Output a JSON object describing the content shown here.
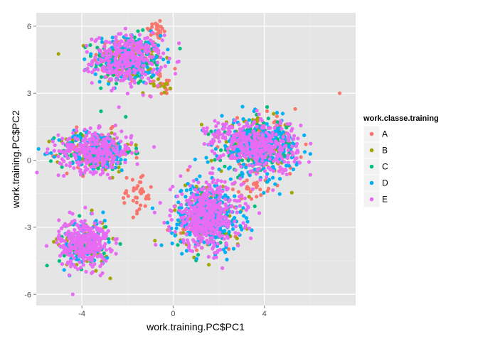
{
  "chart_data": {
    "type": "scatter",
    "xlabel": "work.training.PC$PC1",
    "ylabel": "work.training.PC$PC2",
    "xlim": [
      -6,
      8
    ],
    "ylim": [
      -6.5,
      6.6
    ],
    "x_ticks": [
      -4,
      0,
      4
    ],
    "y_ticks": [
      -6,
      -3,
      0,
      3,
      6
    ],
    "grid": true,
    "legend": {
      "title": "work.classe.training",
      "placement": "right",
      "entries": [
        "A",
        "B",
        "C",
        "D",
        "E"
      ]
    },
    "colors": {
      "A": "#F8766D",
      "B": "#A3A500",
      "C": "#00BF7D",
      "D": "#00B0F6",
      "E": "#E76BF3"
    },
    "clusters": [
      {
        "center": [
          -2,
          4.5
        ],
        "spread": [
          0.75,
          0.55
        ],
        "counts": {
          "A": 70,
          "B": 70,
          "C": 110,
          "D": 130,
          "E": 320
        },
        "extra": [
          {
            "class": "A",
            "center": [
              -0.8,
              5.8
            ],
            "spread": [
              0.3,
              0.2
            ],
            "n": 25
          },
          {
            "class": "A",
            "center": [
              -0.4,
              3.4
            ],
            "spread": [
              0.35,
              0.25
            ],
            "n": 20
          },
          {
            "class": "B",
            "center": [
              -0.7,
              3.4
            ],
            "spread": [
              0.3,
              0.2
            ],
            "n": 15
          }
        ]
      },
      {
        "center": [
          -3.4,
          0.4
        ],
        "spread": [
          0.8,
          0.45
        ],
        "counts": {
          "A": 35,
          "B": 90,
          "C": 80,
          "D": 130,
          "E": 300
        },
        "extra": [
          {
            "class": "A",
            "center": [
              -1.6,
              -1.5
            ],
            "spread": [
              0.35,
              0.45
            ],
            "n": 40
          }
        ]
      },
      {
        "center": [
          -3.9,
          -3.7
        ],
        "spread": [
          0.55,
          0.55
        ],
        "counts": {
          "B": 70,
          "C": 40,
          "D": 80,
          "E": 300
        }
      },
      {
        "center": [
          1.5,
          -2.5
        ],
        "spread": [
          0.75,
          0.75
        ],
        "counts": {
          "A": 40,
          "B": 80,
          "C": 70,
          "D": 260,
          "E": 430
        }
      },
      {
        "center": [
          3.8,
          0.6
        ],
        "spread": [
          0.85,
          0.6
        ],
        "counts": {
          "A": 70,
          "B": 110,
          "C": 110,
          "D": 250,
          "E": 330
        },
        "extra": [
          {
            "class": "A",
            "center": [
              3.5,
              -1.2
            ],
            "spread": [
              0.35,
              0.2
            ],
            "n": 20
          },
          {
            "class": "E",
            "center": [
              2.2,
              1.2
            ],
            "spread": [
              0.5,
              0.3
            ],
            "n": 40
          }
        ]
      }
    ],
    "outliers": [
      {
        "class": "A",
        "x": 7.3,
        "y": 3.0
      },
      {
        "class": "E",
        "x": -5.5,
        "y": 0.5
      },
      {
        "class": "B",
        "x": -0.8,
        "y": -3.6
      },
      {
        "class": "C",
        "x": 0.3,
        "y": 5.0
      },
      {
        "class": "E",
        "x": -4.4,
        "y": -6.0
      },
      {
        "class": "B",
        "x": 2.8,
        "y": -3.5
      }
    ]
  }
}
